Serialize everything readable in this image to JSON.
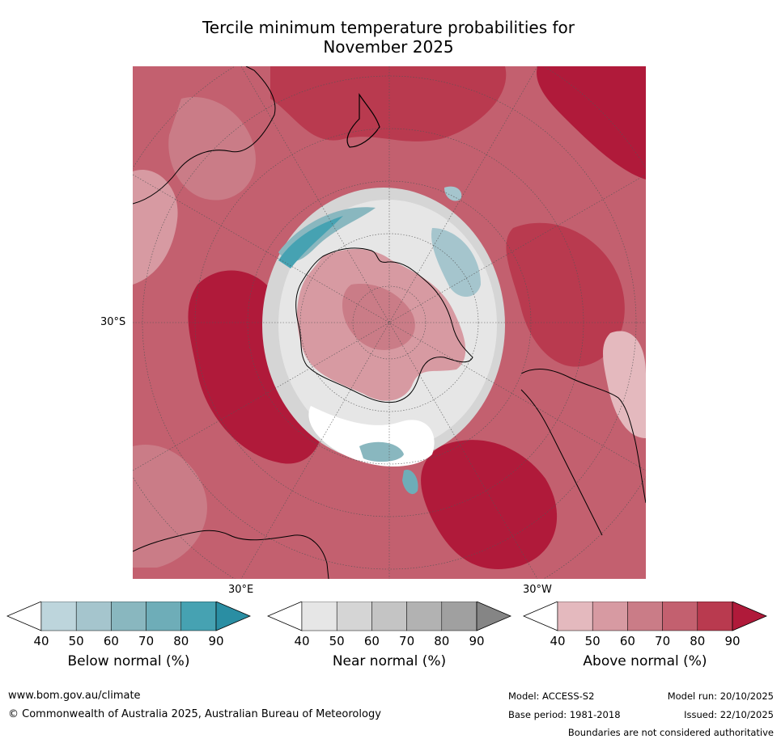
{
  "title_line1": "Tercile minimum temperature probabilities for",
  "title_line2": "November 2025",
  "map": {
    "lat_label": "30°S",
    "lon_label_east": "30°E",
    "lon_label_west": "30°W",
    "colors": {
      "above": [
        "#e4b9be",
        "#d79aa2",
        "#ca7c87",
        "#c3606f",
        "#b93a4f",
        "#b01a3a"
      ],
      "near": [
        "#e6e6e6",
        "#d5d5d5",
        "#c4c4c4",
        "#b2b2b2",
        "#a0a0a0",
        "#858585"
      ],
      "below": [
        "#bdd5dc",
        "#a5c5cd",
        "#89b7bf",
        "#6eadb8",
        "#46a2b2",
        "#2a8ea3"
      ]
    }
  },
  "legends": [
    {
      "title": "Below normal (%)",
      "ticks": [
        "40",
        "50",
        "60",
        "70",
        "80",
        "90"
      ],
      "colors": [
        "#ffffff",
        "#bdd5dc",
        "#a5c5cd",
        "#89b7bf",
        "#6eadb8",
        "#46a2b2",
        "#2a8ea3"
      ]
    },
    {
      "title": "Near normal (%)",
      "ticks": [
        "40",
        "50",
        "60",
        "70",
        "80",
        "90"
      ],
      "colors": [
        "#ffffff",
        "#e6e6e6",
        "#d5d5d5",
        "#c4c4c4",
        "#b2b2b2",
        "#a0a0a0",
        "#858585"
      ]
    },
    {
      "title": "Above normal (%)",
      "ticks": [
        "40",
        "50",
        "60",
        "70",
        "80",
        "90"
      ],
      "colors": [
        "#ffffff",
        "#e4b9be",
        "#d79aa2",
        "#ca7c87",
        "#c3606f",
        "#b93a4f",
        "#b01a3a"
      ]
    }
  ],
  "footer": {
    "website": "www.bom.gov.au/climate",
    "copyright": "© Commonwealth of Australia 2025, Australian Bureau of Meteorology",
    "model": "Model: ACCESS-S2",
    "model_run": "Model run: 20/10/2025",
    "base_period": "Base period: 1981-2018",
    "issued": "Issued: 22/10/2025",
    "disclaimer": "Boundaries are not considered authoritative"
  }
}
